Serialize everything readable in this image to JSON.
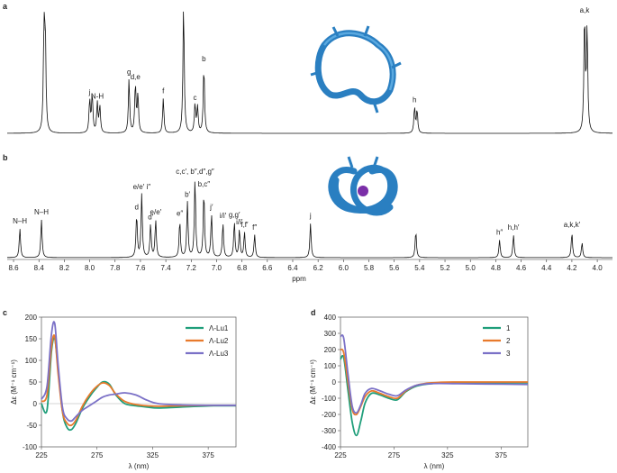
{
  "chart_data": [
    {
      "type": "line",
      "panel": "a",
      "xlabel": "",
      "xlim": [
        8.65,
        3.88
      ],
      "reversed_x": true,
      "baseline_note": "1H NMR spectrum (a)",
      "peaks": [
        {
          "x": 8.36,
          "h": 0.76,
          "label": "i"
        },
        {
          "x": 8.35,
          "h": 0.7,
          "label": ""
        },
        {
          "x": 8.0,
          "h": 0.26,
          "label": "j"
        },
        {
          "x": 7.98,
          "h": 0.3,
          "label": ""
        },
        {
          "x": 7.94,
          "h": 0.23,
          "label": "N-H"
        },
        {
          "x": 7.92,
          "h": 0.21,
          "label": ""
        },
        {
          "x": 7.69,
          "h": 0.42,
          "label": "g"
        },
        {
          "x": 7.64,
          "h": 0.38,
          "label": "d,e"
        },
        {
          "x": 7.62,
          "h": 0.3,
          "label": ""
        },
        {
          "x": 7.42,
          "h": 0.27,
          "label": "f"
        },
        {
          "x": 7.26,
          "h": 1.0,
          "label": ""
        },
        {
          "x": 7.17,
          "h": 0.22,
          "label": "c"
        },
        {
          "x": 7.15,
          "h": 0.2,
          "label": ""
        },
        {
          "x": 7.1,
          "h": 0.52,
          "label": "b"
        },
        {
          "x": 5.44,
          "h": 0.2,
          "label": "h"
        },
        {
          "x": 5.42,
          "h": 0.18,
          "label": ""
        },
        {
          "x": 4.1,
          "h": 0.9,
          "label": "a,k"
        },
        {
          "x": 4.08,
          "h": 0.8,
          "label": ""
        }
      ]
    },
    {
      "type": "line",
      "panel": "b",
      "xlabel": "ppm",
      "xlim": [
        8.65,
        3.88
      ],
      "reversed_x": true,
      "ticks": [
        "8.6",
        "8.4",
        "8.2",
        "8.0",
        "7.8",
        "7.6",
        "7.4",
        "7.2",
        "7.0",
        "6.8",
        "6.6",
        "6.4",
        "6.2",
        "6.0",
        "5.8",
        "5.6",
        "5.4",
        "5.2",
        "5.0",
        "4.8",
        "4.6",
        "4.4",
        "4.2",
        "4.0"
      ],
      "peaks": [
        {
          "x": 8.55,
          "h": 0.23,
          "label": "N–H"
        },
        {
          "x": 8.38,
          "h": 0.3,
          "label": "N–H"
        },
        {
          "x": 7.63,
          "h": 0.34,
          "label": "d"
        },
        {
          "x": 7.59,
          "h": 0.5,
          "label": "e/e′ i″"
        },
        {
          "x": 7.52,
          "h": 0.26,
          "label": "d′"
        },
        {
          "x": 7.48,
          "h": 0.3,
          "label": "e/e′"
        },
        {
          "x": 7.29,
          "h": 0.29,
          "label": "e″"
        },
        {
          "x": 7.23,
          "h": 0.44,
          "label": "b′"
        },
        {
          "x": 7.17,
          "h": 0.62,
          "label": "c,c′, b″,d″,g″"
        },
        {
          "x": 7.1,
          "h": 0.52,
          "label": "b,c″"
        },
        {
          "x": 7.04,
          "h": 0.34,
          "label": "j′"
        },
        {
          "x": 6.95,
          "h": 0.27,
          "label": "i/i′"
        },
        {
          "x": 6.86,
          "h": 0.28,
          "label": "g,g′"
        },
        {
          "x": 6.82,
          "h": 0.22,
          "label": "i/i′"
        },
        {
          "x": 6.78,
          "h": 0.2,
          "label": "f,f′"
        },
        {
          "x": 6.7,
          "h": 0.18,
          "label": "f″"
        },
        {
          "x": 6.26,
          "h": 0.27,
          "label": "j"
        },
        {
          "x": 5.43,
          "h": 0.21,
          "label": ""
        },
        {
          "x": 4.77,
          "h": 0.14,
          "label": "h″"
        },
        {
          "x": 4.66,
          "h": 0.18,
          "label": "h,h′"
        },
        {
          "x": 4.2,
          "h": 0.2,
          "label": "a,k,k′"
        },
        {
          "x": 4.12,
          "h": 0.12,
          "label": ""
        }
      ]
    },
    {
      "type": "line",
      "panel": "c",
      "xlabel": "λ (nm)",
      "ylabel": "Δε (M⁻¹ cm⁻¹)",
      "xlim": [
        225,
        400
      ],
      "ylim": [
        -100,
        200
      ],
      "xticks": [
        225,
        275,
        325,
        375
      ],
      "yticks": [
        -100,
        -50,
        0,
        50,
        100,
        150,
        200
      ],
      "series": [
        {
          "name": "Λ-Lu1",
          "color": "#1f9e7a",
          "x": [
            225,
            230,
            234,
            237,
            240,
            244,
            248,
            252,
            256,
            262,
            268,
            274,
            280,
            286,
            292,
            300,
            310,
            320,
            330,
            350,
            380,
            400
          ],
          "y": [
            0,
            -15,
            120,
            150,
            80,
            -20,
            -55,
            -60,
            -45,
            -10,
            15,
            35,
            50,
            45,
            20,
            0,
            -5,
            -8,
            -10,
            -8,
            -5,
            -5
          ]
        },
        {
          "name": "Λ-Lu2",
          "color": "#e87a2c",
          "x": [
            225,
            230,
            234,
            237,
            240,
            244,
            248,
            252,
            256,
            262,
            268,
            274,
            280,
            286,
            292,
            300,
            310,
            320,
            330,
            350,
            380,
            400
          ],
          "y": [
            5,
            20,
            130,
            155,
            70,
            -20,
            -45,
            -50,
            -38,
            -5,
            20,
            38,
            48,
            42,
            22,
            5,
            -2,
            -5,
            -6,
            -5,
            -4,
            -4
          ]
        },
        {
          "name": "Λ-Lu3",
          "color": "#7b71c7",
          "x": [
            225,
            230,
            234,
            237,
            240,
            244,
            248,
            252,
            256,
            262,
            268,
            274,
            280,
            286,
            292,
            300,
            310,
            320,
            330,
            350,
            380,
            400
          ],
          "y": [
            10,
            40,
            160,
            185,
            90,
            -10,
            -35,
            -40,
            -30,
            -15,
            -5,
            5,
            15,
            20,
            22,
            25,
            20,
            8,
            0,
            -3,
            -4,
            -4
          ]
        }
      ]
    },
    {
      "type": "line",
      "panel": "d",
      "xlabel": "λ (nm)",
      "ylabel": "Δε (M⁻¹ cm⁻¹)",
      "xlim": [
        225,
        400
      ],
      "ylim": [
        -400,
        400
      ],
      "xticks": [
        225,
        275,
        325,
        375
      ],
      "yticks": [
        -400,
        -300,
        -200,
        -100,
        0,
        100,
        200,
        300,
        400
      ],
      "series": [
        {
          "name": "1",
          "color": "#1f9e7a",
          "x": [
            225,
            228,
            232,
            236,
            240,
            244,
            248,
            254,
            262,
            270,
            278,
            286,
            296,
            310,
            330,
            360,
            400
          ],
          "y": [
            140,
            150,
            -50,
            -250,
            -330,
            -240,
            -130,
            -70,
            -80,
            -100,
            -110,
            -60,
            -25,
            -10,
            -5,
            -5,
            -5
          ]
        },
        {
          "name": "2",
          "color": "#e87a2c",
          "x": [
            225,
            228,
            232,
            236,
            240,
            244,
            248,
            254,
            262,
            270,
            278,
            286,
            296,
            310,
            330,
            360,
            400
          ],
          "y": [
            200,
            180,
            0,
            -170,
            -200,
            -150,
            -90,
            -55,
            -70,
            -90,
            -100,
            -55,
            -20,
            -5,
            0,
            0,
            0
          ]
        },
        {
          "name": "3",
          "color": "#7b71c7",
          "x": [
            225,
            228,
            232,
            236,
            240,
            244,
            248,
            254,
            262,
            270,
            278,
            286,
            296,
            310,
            330,
            360,
            400
          ],
          "y": [
            280,
            270,
            50,
            -150,
            -190,
            -140,
            -70,
            -40,
            -55,
            -75,
            -85,
            -50,
            -20,
            -10,
            -10,
            -12,
            -15
          ]
        }
      ]
    }
  ]
}
